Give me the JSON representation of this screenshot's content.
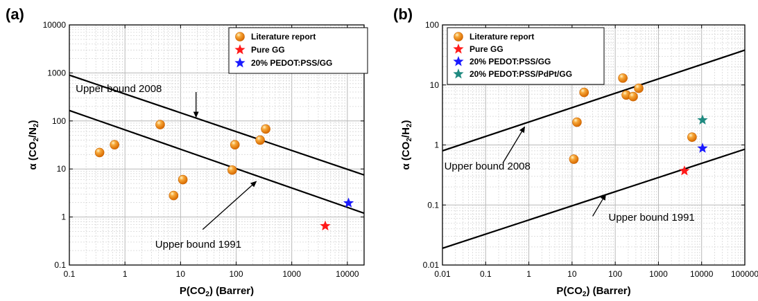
{
  "chart_data": [
    {
      "panel_label": "(a)",
      "type": "scatter",
      "xscale": "log",
      "yscale": "log",
      "xlim": [
        0.1,
        20000
      ],
      "ylim": [
        0.1,
        10000
      ],
      "xticks": [
        0.1,
        1,
        10,
        100,
        1000,
        10000
      ],
      "xtick_labels": [
        "0.1",
        "1",
        "10",
        "100",
        "1000",
        "10000"
      ],
      "yticks": [
        0.1,
        1,
        10,
        100,
        1000,
        10000
      ],
      "ytick_labels": [
        "0.1",
        "1",
        "10",
        "100",
        "1000",
        "10000"
      ],
      "xlabel": "P(CO₂) (Barrer)",
      "ylabel": "α (CO₂/N₂)",
      "grid": true,
      "legend_placement": "top-right",
      "series": [
        {
          "name": "Literature report",
          "marker": "sphere",
          "color": "#f28e1c",
          "points": [
            [
              0.35,
              22
            ],
            [
              0.65,
              32
            ],
            [
              4.3,
              84
            ],
            [
              7.5,
              2.8
            ],
            [
              11,
              6
            ],
            [
              85,
              9.5
            ],
            [
              95,
              32
            ],
            [
              270,
              40
            ],
            [
              340,
              68
            ]
          ]
        },
        {
          "name": "Pure GG",
          "marker": "star",
          "color": "#ff1a1a",
          "points": [
            [
              4000,
              0.65
            ]
          ]
        },
        {
          "name": "20% PEDOT:PSS/GG",
          "marker": "star",
          "color": "#1a1aff",
          "points": [
            [
              10500,
              1.95
            ]
          ]
        }
      ],
      "lines": [
        {
          "label": "Upper bound 2008",
          "from": [
            0.1,
            900
          ],
          "to": [
            20000,
            7.5
          ],
          "label_pos": [
            0.13,
            400
          ],
          "arrow_from": [
            19,
            400
          ],
          "arrow_to": [
            19,
            120
          ]
        },
        {
          "label": "Upper bound 1991",
          "from": [
            0.1,
            165
          ],
          "to": [
            20000,
            1.2
          ],
          "label_pos": [
            3.5,
            0.23
          ],
          "arrow_from": [
            25,
            0.55
          ],
          "arrow_to": [
            230,
            5.5
          ]
        }
      ]
    },
    {
      "panel_label": "(b)",
      "type": "scatter",
      "xscale": "log",
      "yscale": "log",
      "xlim": [
        0.01,
        100000
      ],
      "ylim": [
        0.01,
        100
      ],
      "xticks": [
        0.01,
        0.1,
        1,
        10,
        100,
        1000,
        10000,
        100000
      ],
      "xtick_labels": [
        "0.01",
        "0.1",
        "1",
        "10",
        "100",
        "1000",
        "10000",
        "100000"
      ],
      "yticks": [
        0.01,
        0.1,
        1,
        10,
        100
      ],
      "ytick_labels": [
        "0.01",
        "0.1",
        "1",
        "10",
        "100"
      ],
      "xlabel": "P(CO₂) (Barrer)",
      "ylabel": "α (CO₂/H₂)",
      "grid": true,
      "legend_placement": "top-left",
      "series": [
        {
          "name": "Literature report",
          "marker": "sphere",
          "color": "#f28e1c",
          "points": [
            [
              11,
              0.58
            ],
            [
              13,
              2.4
            ],
            [
              19,
              7.5
            ],
            [
              150,
              13
            ],
            [
              180,
              6.8
            ],
            [
              260,
              6.4
            ],
            [
              350,
              8.8
            ],
            [
              6000,
              1.35
            ]
          ]
        },
        {
          "name": "Pure GG",
          "marker": "star",
          "color": "#ff1a1a",
          "points": [
            [
              4000,
              0.37
            ]
          ]
        },
        {
          "name": "20% PEDOT:PSS/GG",
          "marker": "star",
          "color": "#1a1aff",
          "points": [
            [
              10500,
              0.88
            ]
          ]
        },
        {
          "name": "20% PEDOT:PSS/PdPt/GG",
          "marker": "star",
          "color": "#1f8a80",
          "points": [
            [
              10500,
              2.6
            ]
          ]
        }
      ],
      "lines": [
        {
          "label": "Upper bound 2008",
          "from": [
            0.01,
            0.8
          ],
          "to": [
            100000,
            38
          ],
          "label_pos": [
            0.011,
            0.39
          ],
          "arrow_from": [
            0.25,
            0.5
          ],
          "arrow_to": [
            0.8,
            2.0
          ]
        },
        {
          "label": "Upper bound 1991",
          "from": [
            0.01,
            0.019
          ],
          "to": [
            100000,
            0.85
          ],
          "label_pos": [
            70,
            0.055
          ],
          "arrow_from": [
            30,
            0.065
          ],
          "arrow_to": [
            60,
            0.15
          ]
        }
      ]
    }
  ]
}
